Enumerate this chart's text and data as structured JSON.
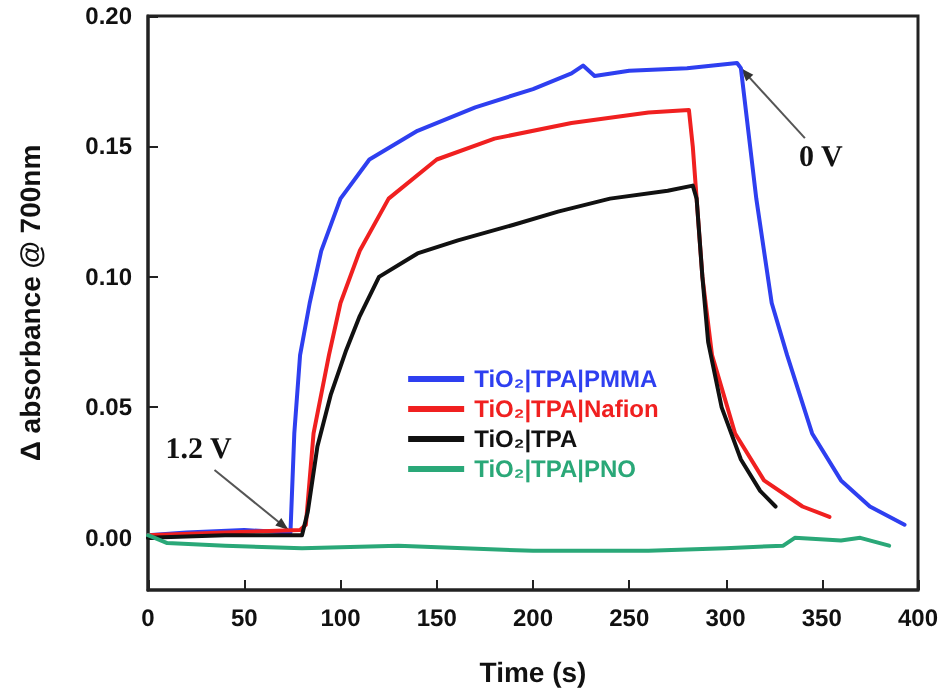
{
  "chart_data": {
    "type": "line",
    "xlabel": "Time (s)",
    "ylabel": "Δ absorbance @ 700nm",
    "xlim": [
      0,
      400
    ],
    "xticks": [
      0,
      50,
      100,
      150,
      200,
      250,
      300,
      350,
      400
    ],
    "ylim": [
      -0.02,
      0.2
    ],
    "yticks": [
      {
        "value": 0,
        "label": "0.00"
      },
      0.05,
      {
        "value": 0.1,
        "label": "0.10"
      },
      0.15,
      {
        "value": 0.2,
        "label": "0.20"
      }
    ],
    "grid": false,
    "legend": "center",
    "marker": "none",
    "line_style": "solid",
    "annotations": [
      {
        "text": "1.2 V",
        "x": 73,
        "y": 0.003
      },
      {
        "text": "0 V",
        "x": 308,
        "y": 0.18
      }
    ],
    "series": [
      {
        "name": "TiO₂|TPA|PMMA",
        "color": "#2e3ff0",
        "x": [
          0,
          20,
          50,
          74,
          76,
          79,
          84,
          90,
          100,
          115,
          140,
          170,
          200,
          220,
          226,
          232,
          250,
          280,
          306,
          308,
          316,
          324,
          332,
          345,
          360,
          375,
          393
        ],
        "values": [
          0.001,
          0.002,
          0.003,
          0.002,
          0.04,
          0.07,
          0.09,
          0.11,
          0.13,
          0.145,
          0.156,
          0.165,
          0.172,
          0.178,
          0.181,
          0.177,
          0.179,
          0.18,
          0.182,
          0.18,
          0.13,
          0.09,
          0.07,
          0.04,
          0.022,
          0.012,
          0.005
        ]
      },
      {
        "name": "TiO₂|TPA|Nafion",
        "color": "#f02020",
        "x": [
          0,
          40,
          79,
          82,
          86,
          94,
          100,
          110,
          125,
          150,
          180,
          220,
          260,
          281,
          283,
          288,
          293,
          305,
          320,
          340,
          354
        ],
        "values": [
          0.001,
          0.002,
          0.003,
          0.005,
          0.04,
          0.07,
          0.09,
          0.11,
          0.13,
          0.145,
          0.153,
          0.159,
          0.163,
          0.164,
          0.15,
          0.1,
          0.07,
          0.04,
          0.022,
          0.012,
          0.008
        ]
      },
      {
        "name": "TiO₂|TPA",
        "color": "#111111",
        "x": [
          0,
          40,
          80,
          83,
          88,
          95,
          103,
          110,
          120,
          140,
          161,
          190,
          213,
          240,
          270,
          283,
          285,
          288,
          291,
          298,
          308,
          318,
          326
        ],
        "values": [
          0,
          0.001,
          0.001,
          0.01,
          0.035,
          0.055,
          0.072,
          0.085,
          0.1,
          0.109,
          0.114,
          0.12,
          0.125,
          0.13,
          0.133,
          0.135,
          0.13,
          0.1,
          0.075,
          0.05,
          0.03,
          0.018,
          0.012
        ]
      },
      {
        "name": "TiO₂|TPA|PNO",
        "color": "#2aa878",
        "x": [
          0,
          10,
          40,
          80,
          130,
          200,
          260,
          300,
          330,
          336,
          360,
          370,
          385
        ],
        "values": [
          0.001,
          -0.002,
          -0.003,
          -0.004,
          -0.003,
          -0.005,
          -0.005,
          -0.004,
          -0.003,
          0,
          -0.001,
          0,
          -0.003
        ]
      }
    ]
  }
}
